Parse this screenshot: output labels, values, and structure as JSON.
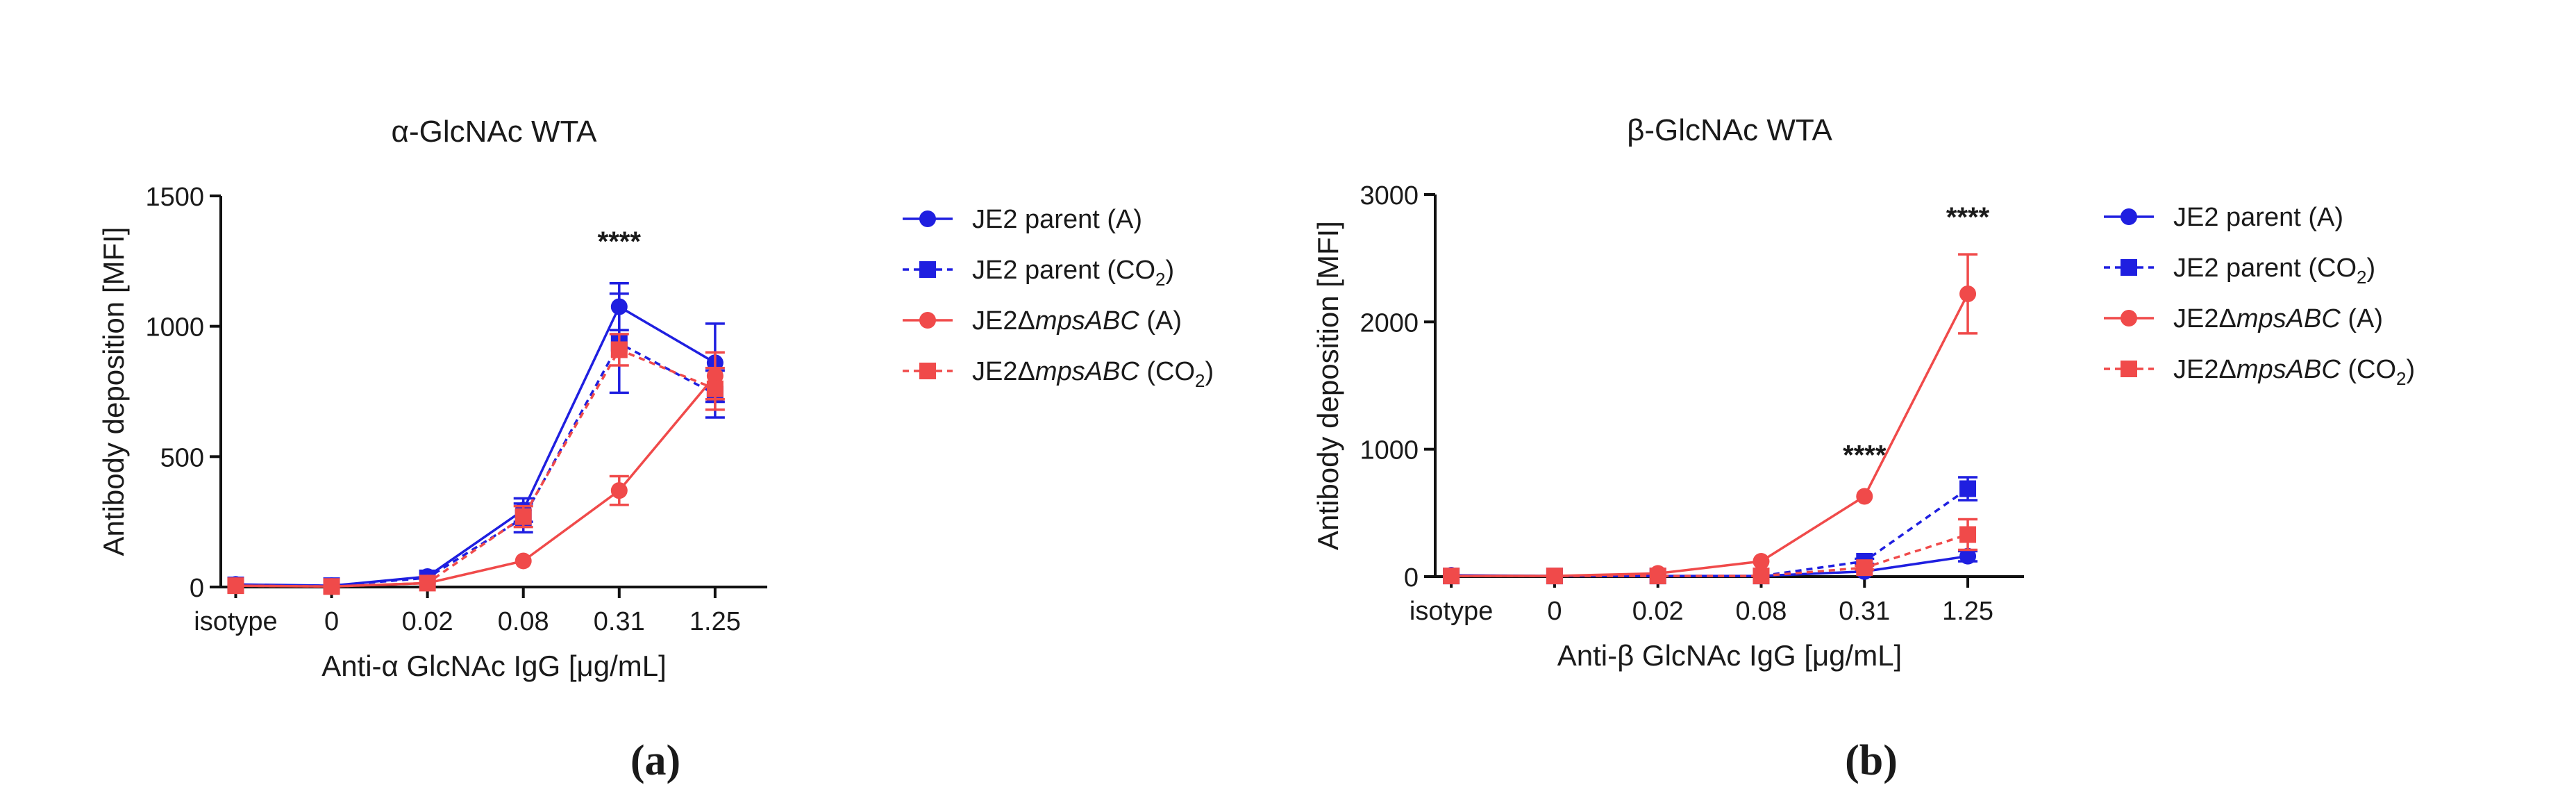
{
  "chart_data": [
    {
      "type": "line",
      "panel_label": "(a)",
      "title": "α-GlcNAc WTA",
      "xlabel": "Anti-α GlcNAc IgG [μg/mL]",
      "ylabel": "Antibody deposition [MFI]",
      "categories": [
        "isotype",
        "0",
        "0.02",
        "0.08",
        "0.31",
        "1.25"
      ],
      "ylim": [
        0,
        1500
      ],
      "yticks": [
        0,
        500,
        1000,
        1500
      ],
      "grid": false,
      "legend_position": "right",
      "annotations": [
        {
          "category": "0.31",
          "y": 1290,
          "text": "****"
        }
      ],
      "series": [
        {
          "name": "JE2 parent (A)",
          "name_main": "JE2 parent (A)",
          "color": "#1f1fe0",
          "marker": "circle",
          "dashed": false,
          "values": [
            10,
            5,
            40,
            295,
            1075,
            860
          ],
          "errors": [
            0,
            0,
            0,
            45,
            90,
            150
          ]
        },
        {
          "name": "JE2 parent (CO2)",
          "name_main": "JE2 parent (CO",
          "name_sub": "2",
          "name_tail": ")",
          "color": "#1f1fe0",
          "marker": "square",
          "dashed": true,
          "values": [
            8,
            5,
            35,
            265,
            935,
            740
          ],
          "errors": [
            0,
            0,
            0,
            55,
            190,
            90
          ]
        },
        {
          "name": "JE2ΔmpsABC (A)",
          "name_main": "JE2Δ",
          "name_em": "mpsABC",
          "name_tail": " (A)",
          "color": "#f04a4a",
          "marker": "circle",
          "dashed": false,
          "values": [
            5,
            2,
            15,
            100,
            370,
            810
          ],
          "errors": [
            0,
            0,
            0,
            0,
            55,
            90
          ]
        },
        {
          "name": "JE2ΔmpsABC (CO2)",
          "name_main": "JE2Δ",
          "name_em": "mpsABC",
          "name_tail": " (CO",
          "name_sub": "2",
          "name_tail2": ")",
          "color": "#f04a4a",
          "marker": "square",
          "dashed": true,
          "values": [
            5,
            2,
            15,
            270,
            910,
            760
          ],
          "errors": [
            0,
            0,
            0,
            40,
            60,
            80
          ]
        }
      ]
    },
    {
      "type": "line",
      "panel_label": "(b)",
      "title": "β-GlcNAc WTA",
      "xlabel": "Anti-β GlcNAc IgG [μg/mL]",
      "ylabel": "Antibody deposition [MFI]",
      "categories": [
        "isotype",
        "0",
        "0.02",
        "0.08",
        "0.31",
        "1.25"
      ],
      "ylim": [
        0,
        3000
      ],
      "yticks": [
        0,
        1000,
        2000,
        3000
      ],
      "grid": false,
      "legend_position": "right",
      "annotations": [
        {
          "category": "0.31",
          "y": 880,
          "text": "****"
        },
        {
          "category": "1.25",
          "y": 2750,
          "text": "****"
        }
      ],
      "series": [
        {
          "name": "JE2 parent (A)",
          "name_main": "JE2 parent (A)",
          "color": "#1f1fe0",
          "marker": "circle",
          "dashed": false,
          "values": [
            10,
            5,
            5,
            5,
            40,
            160
          ],
          "errors": [
            0,
            0,
            0,
            0,
            0,
            40
          ]
        },
        {
          "name": "JE2 parent (CO2)",
          "name_main": "JE2 parent (CO",
          "name_sub": "2",
          "name_tail": ")",
          "color": "#1f1fe0",
          "marker": "square",
          "dashed": true,
          "values": [
            5,
            5,
            5,
            5,
            120,
            690
          ],
          "errors": [
            0,
            0,
            0,
            0,
            20,
            90
          ]
        },
        {
          "name": "JE2ΔmpsABC (A)",
          "name_main": "JE2Δ",
          "name_em": "mpsABC",
          "name_tail": " (A)",
          "color": "#f04a4a",
          "marker": "circle",
          "dashed": false,
          "values": [
            5,
            5,
            25,
            120,
            630,
            2220
          ],
          "errors": [
            0,
            0,
            0,
            0,
            0,
            310
          ]
        },
        {
          "name": "JE2ΔmpsABC (CO2)",
          "name_main": "JE2Δ",
          "name_em": "mpsABC",
          "name_tail": " (CO",
          "name_sub": "2",
          "name_tail2": ")",
          "color": "#f04a4a",
          "marker": "square",
          "dashed": true,
          "values": [
            5,
            5,
            5,
            5,
            70,
            330
          ],
          "errors": [
            0,
            0,
            0,
            0,
            15,
            120
          ]
        }
      ]
    }
  ]
}
